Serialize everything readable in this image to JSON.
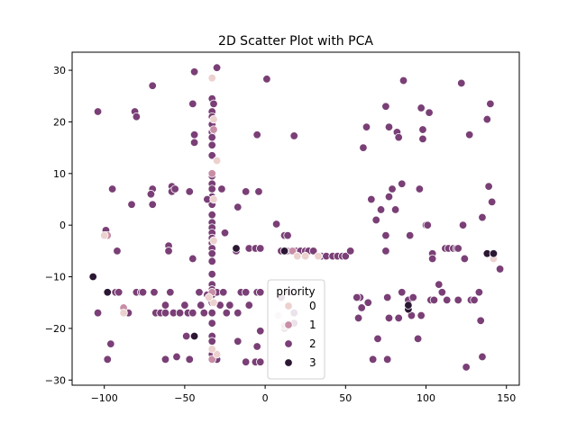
{
  "chart_data": {
    "type": "scatter",
    "title": "2D Scatter Plot with PCA",
    "xlabel": "",
    "ylabel": "",
    "xlim": [
      -120,
      158
    ],
    "ylim": [
      -31,
      33.5
    ],
    "x_ticks": [
      -100,
      -50,
      0,
      50,
      100,
      150
    ],
    "y_ticks": [
      -30,
      -20,
      -10,
      0,
      10,
      20,
      30
    ],
    "legend": {
      "title": "priority",
      "placement": "lower-center",
      "entries": [
        {
          "label": "0",
          "color": "#ecd1cf"
        },
        {
          "label": "1",
          "color": "#c88ea6"
        },
        {
          "label": "2",
          "color": "#7a3f76"
        },
        {
          "label": "3",
          "color": "#2b1733"
        }
      ]
    },
    "series": [
      {
        "name": "0",
        "color": "#ecd1cf",
        "points": [
          [
            -32,
            20.5
          ],
          [
            -30,
            12.5
          ],
          [
            -33,
            28.5
          ],
          [
            -32,
            5
          ],
          [
            -32,
            -3
          ],
          [
            -32,
            -15
          ],
          [
            -30,
            -25
          ],
          [
            25,
            -6
          ],
          [
            33,
            -6
          ],
          [
            20,
            -6
          ],
          [
            8,
            -17.5
          ],
          [
            -100,
            -2
          ],
          [
            -88,
            -17
          ],
          [
            -33,
            -24
          ],
          [
            142,
            -6.5
          ],
          [
            -35,
            -14
          ]
        ]
      },
      {
        "name": "1",
        "color": "#c88ea6",
        "points": [
          [
            -33,
            28.5
          ],
          [
            -33,
            -26
          ],
          [
            -88,
            -16
          ],
          [
            -98,
            -2
          ],
          [
            -32,
            18.5
          ],
          [
            17,
            -5
          ],
          [
            12,
            -19.5
          ],
          [
            -33,
            -13
          ],
          [
            -33,
            10
          ]
        ]
      },
      {
        "name": "2",
        "color": "#7a3f76",
        "points": [
          [
            -44,
            29.7
          ],
          [
            -30,
            30.5
          ],
          [
            1,
            28.3
          ],
          [
            -33,
            24.5
          ],
          [
            -32,
            23.5
          ],
          [
            -33,
            22
          ],
          [
            -33,
            21
          ],
          [
            -33,
            19.5
          ],
          [
            -33,
            18
          ],
          [
            -33,
            17
          ],
          [
            -33,
            15.5
          ],
          [
            -33,
            13.5
          ],
          [
            -33,
            9.5
          ],
          [
            -33,
            8
          ],
          [
            -33,
            7
          ],
          [
            -33,
            5.5
          ],
          [
            -33,
            4
          ],
          [
            -33,
            2
          ],
          [
            -33,
            0.5
          ],
          [
            -33,
            -0.5
          ],
          [
            -33,
            -1.5
          ],
          [
            -33,
            -2.5
          ],
          [
            -33,
            -3.5
          ],
          [
            -33,
            -4.5
          ],
          [
            -33,
            -5.5
          ],
          [
            -33,
            -7
          ],
          [
            -33,
            -9.5
          ],
          [
            -33,
            -11.5
          ],
          [
            -33,
            -12.5
          ],
          [
            -33,
            -13.5
          ],
          [
            -33,
            -15
          ],
          [
            -33,
            -17
          ],
          [
            -33,
            -19
          ],
          [
            -33,
            -21.5
          ],
          [
            -33,
            -22.5
          ],
          [
            -33,
            -24
          ],
          [
            -33,
            -25
          ],
          [
            -104,
            22
          ],
          [
            -81,
            22
          ],
          [
            -80,
            21
          ],
          [
            -70,
            27
          ],
          [
            -45,
            23.5
          ],
          [
            -44,
            17.5
          ],
          [
            -44,
            16
          ],
          [
            -5,
            17.5
          ],
          [
            18,
            17.3
          ],
          [
            -95,
            7
          ],
          [
            -70,
            7
          ],
          [
            -71,
            6
          ],
          [
            -58,
            7.5
          ],
          [
            -58,
            6.5
          ],
          [
            -56,
            7
          ],
          [
            -47,
            6.5
          ],
          [
            -27,
            7
          ],
          [
            -12,
            6.5
          ],
          [
            -4,
            6.5
          ],
          [
            -83,
            4
          ],
          [
            -70,
            4
          ],
          [
            -36,
            5
          ],
          [
            -17,
            3.5
          ],
          [
            -25,
            -1.5
          ],
          [
            -99,
            -1
          ],
          [
            -99,
            -2
          ],
          [
            -92,
            -5
          ],
          [
            -60,
            -4
          ],
          [
            -60,
            -5
          ],
          [
            -45,
            -6.5
          ],
          [
            -18,
            -5
          ],
          [
            -10,
            -4.5
          ],
          [
            -6,
            -4.5
          ],
          [
            -3,
            -4.5
          ],
          [
            7,
            0.2
          ],
          [
            12,
            -2
          ],
          [
            14,
            -2
          ],
          [
            10,
            -5
          ],
          [
            12,
            -5
          ],
          [
            14,
            -5
          ],
          [
            16,
            -5
          ],
          [
            19,
            -5
          ],
          [
            22,
            -5
          ],
          [
            25,
            -5
          ],
          [
            27,
            -5
          ],
          [
            30,
            -5
          ],
          [
            35,
            -6
          ],
          [
            38,
            -6
          ],
          [
            42,
            -6
          ],
          [
            45,
            -6
          ],
          [
            48,
            -6
          ],
          [
            50,
            -6
          ],
          [
            53,
            -5
          ],
          [
            -104,
            -17
          ],
          [
            -93,
            -13
          ],
          [
            -91,
            -13
          ],
          [
            -85,
            -17
          ],
          [
            -80,
            -13
          ],
          [
            -77,
            -13
          ],
          [
            -76,
            -13
          ],
          [
            -69,
            -13
          ],
          [
            -68,
            -17
          ],
          [
            -65,
            -17
          ],
          [
            -62,
            -15.5
          ],
          [
            -62,
            -17
          ],
          [
            -59,
            -13
          ],
          [
            -57,
            -17
          ],
          [
            -53,
            -17
          ],
          [
            -50,
            -15.5
          ],
          [
            -48,
            -17
          ],
          [
            -45,
            -17
          ],
          [
            -41,
            -13
          ],
          [
            -40,
            -15.5
          ],
          [
            -38,
            -17
          ],
          [
            -36,
            -13.5
          ],
          [
            -30,
            -13
          ],
          [
            -28,
            -15.5
          ],
          [
            -26,
            -13
          ],
          [
            -24,
            -17
          ],
          [
            -22,
            -15.5
          ],
          [
            -17,
            -17
          ],
          [
            -15,
            -13
          ],
          [
            -12,
            -13
          ],
          [
            -10,
            -15.5
          ],
          [
            -5,
            -13
          ],
          [
            -3,
            -13
          ],
          [
            -98,
            -26
          ],
          [
            -96,
            -23
          ],
          [
            -62,
            -26
          ],
          [
            -55,
            -25.5
          ],
          [
            -49,
            -21.5
          ],
          [
            -47,
            -26
          ],
          [
            -30,
            -26
          ],
          [
            -17,
            -22.5
          ],
          [
            -12,
            -26.5
          ],
          [
            -6,
            -26.5
          ],
          [
            -3,
            -26.5
          ],
          [
            -5,
            -23.5
          ],
          [
            -3,
            -20.5
          ],
          [
            10,
            -14
          ],
          [
            12,
            -20
          ],
          [
            15,
            -13
          ],
          [
            18,
            -17
          ],
          [
            18,
            -19
          ],
          [
            86,
            28
          ],
          [
            122,
            27.5
          ],
          [
            140,
            23.5
          ],
          [
            75,
            23
          ],
          [
            97,
            22.7
          ],
          [
            102,
            21.8
          ],
          [
            138,
            20.5
          ],
          [
            63,
            19
          ],
          [
            77,
            19
          ],
          [
            98,
            18.5
          ],
          [
            82,
            18
          ],
          [
            83,
            17
          ],
          [
            98,
            16.7
          ],
          [
            127,
            17.5
          ],
          [
            61,
            15
          ],
          [
            85,
            8
          ],
          [
            79,
            7
          ],
          [
            96,
            7
          ],
          [
            139,
            7.5
          ],
          [
            77,
            5.5
          ],
          [
            66,
            5
          ],
          [
            141,
            4.5
          ],
          [
            72,
            3
          ],
          [
            81,
            3
          ],
          [
            69,
            1
          ],
          [
            135,
            1.5
          ],
          [
            100,
            0
          ],
          [
            101,
            0
          ],
          [
            123,
            0
          ],
          [
            75,
            -2
          ],
          [
            90,
            -2
          ],
          [
            112,
            -4.5
          ],
          [
            114,
            -4.5
          ],
          [
            117,
            -4.5
          ],
          [
            119,
            -4.5
          ],
          [
            120,
            -4.5
          ],
          [
            104,
            -5.5
          ],
          [
            104,
            -6.5
          ],
          [
            75,
            -5
          ],
          [
            124,
            -6.5
          ],
          [
            146,
            -8.5
          ],
          [
            59,
            -14
          ],
          [
            57,
            -14
          ],
          [
            60,
            -16
          ],
          [
            64,
            -15
          ],
          [
            76,
            -14
          ],
          [
            85,
            -13
          ],
          [
            89,
            -14.5
          ],
          [
            92,
            -14
          ],
          [
            103,
            -14.5
          ],
          [
            105,
            -14.5
          ],
          [
            108,
            -11.5
          ],
          [
            110,
            -13
          ],
          [
            113,
            -14.5
          ],
          [
            120,
            -14.5
          ],
          [
            128,
            -14.5
          ],
          [
            130,
            -14.5
          ],
          [
            133,
            -13
          ],
          [
            58,
            -18
          ],
          [
            77,
            -18
          ],
          [
            83,
            -18
          ],
          [
            91,
            -17.5
          ],
          [
            97,
            -17.5
          ],
          [
            134,
            -18.5
          ],
          [
            70,
            -22
          ],
          [
            95,
            -22
          ],
          [
            67,
            -26
          ],
          [
            76,
            -26
          ],
          [
            125,
            -27.5
          ],
          [
            135,
            -25.5
          ]
        ]
      },
      {
        "name": "3",
        "color": "#2b1733",
        "points": [
          [
            -107,
            -10
          ],
          [
            -98,
            -13
          ],
          [
            -44,
            -21.5
          ],
          [
            -18,
            -4.5
          ],
          [
            12,
            -5
          ],
          [
            89,
            -16.3
          ],
          [
            89,
            -15.5
          ],
          [
            138,
            -5.5
          ],
          [
            142,
            -5.5
          ]
        ]
      }
    ]
  }
}
